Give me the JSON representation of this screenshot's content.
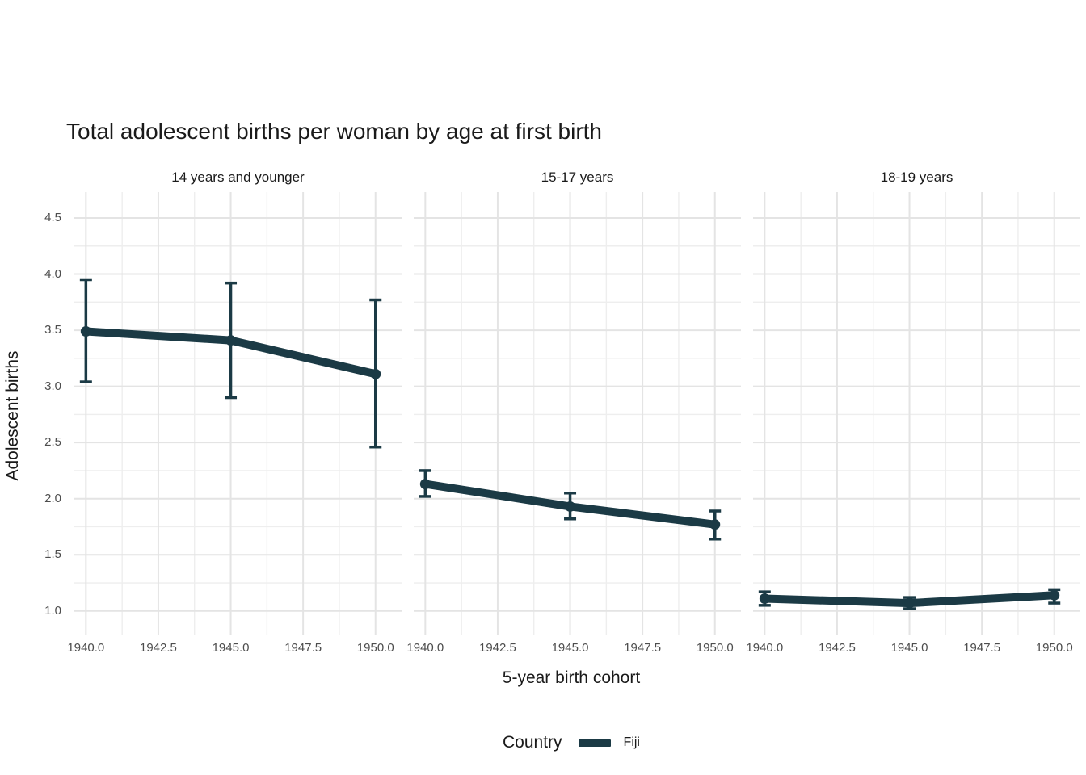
{
  "title": "Total adolescent births per woman by age at first birth",
  "axes": {
    "x_title": "5-year birth cohort",
    "y_title": "Adolescent births"
  },
  "legend": {
    "title": "Country",
    "series_label": "Fiji"
  },
  "chart_data": {
    "type": "line",
    "title": "Total adolescent births per woman by age at first birth",
    "xlabel": "5-year birth cohort",
    "ylabel": "Adolescent births",
    "legend_title": "Country",
    "series_name": "Fiji",
    "line_color": "#1b3a45",
    "grid_major_color": "#e4e4e4",
    "grid_minor_color": "#eeeeee",
    "tick_text_color": "#4d4d4d",
    "x_domain": [
      1939.6,
      1950.9
    ],
    "y_domain": [
      0.79,
      4.73
    ],
    "x_ticks": [
      1940.0,
      1942.5,
      1945.0,
      1947.5,
      1950.0
    ],
    "x_tick_labels": [
      "1940.0",
      "1942.5",
      "1945.0",
      "1947.5",
      "1950.0"
    ],
    "x_minor": [
      1941.25,
      1943.75,
      1946.25,
      1948.75
    ],
    "y_ticks": [
      1.0,
      1.5,
      2.0,
      2.5,
      3.0,
      3.5,
      4.0,
      4.5
    ],
    "y_tick_labels": [
      "1.0",
      "1.5",
      "2.0",
      "2.5",
      "3.0",
      "3.5",
      "4.0",
      "4.5"
    ],
    "y_minor": [
      1.25,
      1.75,
      2.25,
      2.75,
      3.25,
      3.75,
      4.25,
      4.75
    ],
    "facets": [
      {
        "label": "14 years and younger",
        "points": [
          {
            "x": 1940,
            "y": 3.49,
            "lo": 3.04,
            "hi": 3.95
          },
          {
            "x": 1945,
            "y": 3.41,
            "lo": 2.9,
            "hi": 3.92
          },
          {
            "x": 1950,
            "y": 3.11,
            "lo": 2.46,
            "hi": 3.77
          }
        ]
      },
      {
        "label": "15-17 years",
        "points": [
          {
            "x": 1940,
            "y": 2.13,
            "lo": 2.02,
            "hi": 2.25
          },
          {
            "x": 1945,
            "y": 1.93,
            "lo": 1.82,
            "hi": 2.05
          },
          {
            "x": 1950,
            "y": 1.77,
            "lo": 1.64,
            "hi": 1.89
          }
        ]
      },
      {
        "label": "18-19 years",
        "points": [
          {
            "x": 1940,
            "y": 1.11,
            "lo": 1.05,
            "hi": 1.17
          },
          {
            "x": 1945,
            "y": 1.07,
            "lo": 1.02,
            "hi": 1.12
          },
          {
            "x": 1950,
            "y": 1.14,
            "lo": 1.07,
            "hi": 1.19
          }
        ]
      }
    ]
  }
}
